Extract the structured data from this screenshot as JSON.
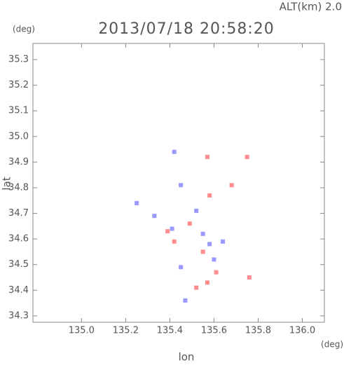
{
  "chart_data": {
    "type": "scatter",
    "title": "2013/07/18 20:58:20",
    "subtitle": "ALT(km) 2.0",
    "y_unit": "(deg)",
    "x_unit": "(deg)",
    "x_label": "lon",
    "y_label": "lat",
    "xlim": [
      134.78,
      136.1
    ],
    "ylim": [
      34.275,
      35.363
    ],
    "xticks": [
      {
        "value": 135,
        "label": "135.0"
      },
      135.2,
      135.4,
      135.6,
      135.8,
      {
        "value": 136,
        "label": "136.0"
      }
    ],
    "yticks": [
      34.3,
      34.4,
      34.5,
      34.6,
      34.7,
      34.8,
      34.9,
      {
        "value": 35,
        "label": "35.0"
      },
      35.1,
      35.2,
      35.3
    ],
    "series": [
      {
        "color": "#8080ff",
        "x": [
          135.42,
          135.45,
          135.25,
          135.33,
          135.41,
          135.55,
          135.58,
          135.45,
          135.6,
          135.47,
          135.64,
          135.52
        ],
        "y": [
          34.94,
          34.81,
          34.74,
          34.69,
          34.64,
          34.62,
          34.58,
          34.49,
          34.52,
          34.36,
          34.59,
          34.71
        ]
      },
      {
        "color": "#ff7070",
        "x": [
          135.75,
          135.68,
          135.58,
          135.39,
          135.49,
          135.55,
          135.57,
          135.61,
          135.76,
          135.57,
          135.52,
          135.42
        ],
        "y": [
          34.92,
          34.81,
          34.77,
          34.63,
          34.66,
          34.55,
          34.43,
          34.47,
          34.45,
          34.92,
          34.41,
          34.59
        ]
      }
    ]
  }
}
